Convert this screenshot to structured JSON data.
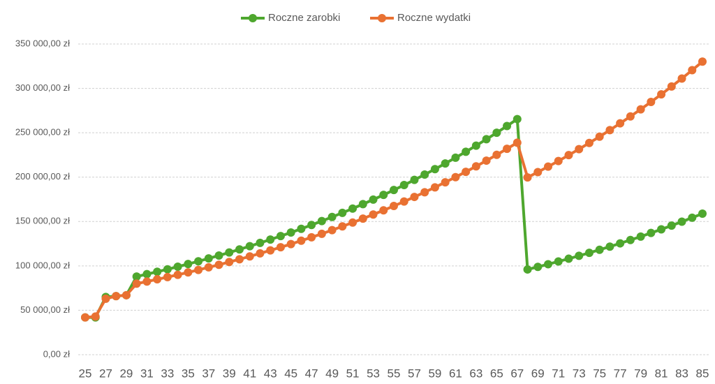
{
  "chart_data": {
    "type": "line",
    "x": [
      25,
      26,
      27,
      28,
      29,
      30,
      31,
      32,
      33,
      34,
      35,
      36,
      37,
      38,
      39,
      40,
      41,
      42,
      43,
      44,
      45,
      46,
      47,
      48,
      49,
      50,
      51,
      52,
      53,
      54,
      55,
      56,
      57,
      58,
      59,
      60,
      61,
      62,
      63,
      64,
      65,
      66,
      67,
      68,
      69,
      70,
      71,
      72,
      73,
      74,
      75,
      76,
      77,
      78,
      79,
      80,
      81,
      82,
      83,
      84,
      85
    ],
    "xlim": [
      25,
      85
    ],
    "xticks": [
      25,
      27,
      29,
      31,
      33,
      35,
      37,
      39,
      41,
      43,
      45,
      47,
      49,
      51,
      53,
      55,
      57,
      59,
      61,
      63,
      65,
      67,
      69,
      71,
      73,
      75,
      77,
      79,
      81,
      83,
      85
    ],
    "ylim": [
      0,
      350000
    ],
    "yticks": [
      {
        "value": 0,
        "label": "0,00 zł"
      },
      {
        "value": 50000,
        "label": "50 000,00 zł"
      },
      {
        "value": 100000,
        "label": "100 000,00 zł"
      },
      {
        "value": 150000,
        "label": "150 000,00 zł"
      },
      {
        "value": 200000,
        "label": "200 000,00 zł"
      },
      {
        "value": 250000,
        "label": "250 000,00 zł"
      },
      {
        "value": 300000,
        "label": "300 000,00 zł"
      },
      {
        "value": 350000,
        "label": "350 000,00 zł"
      }
    ],
    "grid": true,
    "legend": "top",
    "series": [
      {
        "name": "Roczne zarobki",
        "color": "#4ea72e",
        "values": [
          42000,
          42000,
          65000,
          66000,
          67000,
          88000,
          90700,
          93400,
          96200,
          99100,
          102100,
          105200,
          108400,
          111700,
          115100,
          118600,
          122200,
          125900,
          129700,
          133600,
          137600,
          141800,
          146100,
          150500,
          155100,
          159800,
          164600,
          169600,
          174700,
          180000,
          185500,
          191100,
          196900,
          202900,
          209000,
          215400,
          221900,
          228600,
          235500,
          242700,
          250000,
          257600,
          265400,
          96000,
          98900,
          101900,
          105000,
          108100,
          111400,
          114700,
          118200,
          121700,
          125400,
          129200,
          133000,
          137100,
          141200,
          145400,
          149800,
          154300,
          158900
        ]
      },
      {
        "name": "Roczne wydatki",
        "color": "#e97132",
        "values": [
          42000,
          43000,
          63000,
          66000,
          67000,
          80000,
          82400,
          84900,
          87400,
          90000,
          92700,
          95500,
          98400,
          101300,
          104400,
          107500,
          110700,
          114100,
          117500,
          121000,
          124600,
          128400,
          132200,
          136200,
          140300,
          144500,
          148800,
          153300,
          157900,
          162600,
          167500,
          172500,
          177700,
          183000,
          188500,
          194200,
          200000,
          206000,
          212200,
          218600,
          225100,
          231900,
          238800,
          199700,
          205700,
          211900,
          218200,
          224800,
          231500,
          238500,
          245600,
          253000,
          260600,
          268400,
          276400,
          284700,
          293300,
          302100,
          311100,
          320500,
          330100
        ]
      }
    ]
  }
}
